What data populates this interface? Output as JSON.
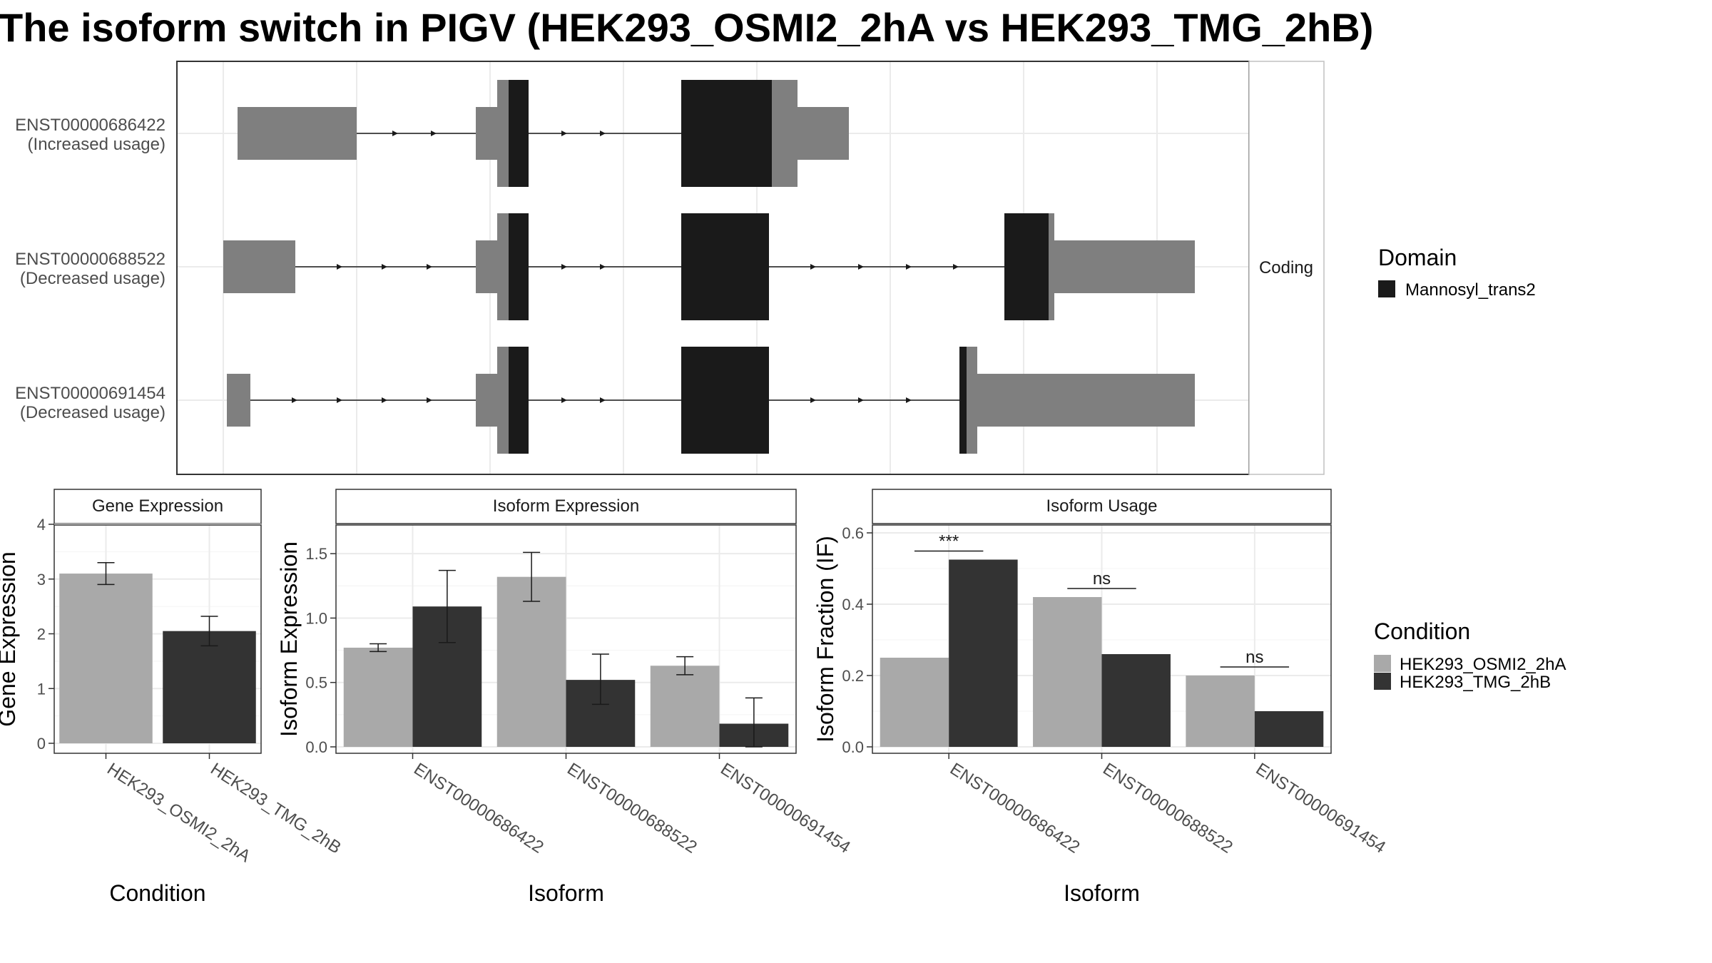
{
  "title": "The isoform switch in PIGV (HEK293_OSMI2_2hA vs HEK293_TMG_2hB)",
  "colors": {
    "domain": "#1a1a1a",
    "exon": "#7f7f7f",
    "cond_a": "#a9a9a9",
    "cond_b": "#333333",
    "grid": "#ebebeb",
    "strip_bg": "#ffffff"
  },
  "structure": {
    "facet_label": "Coding",
    "isoforms": [
      {
        "id": "ENST00000686422",
        "note": "(Increased usage)"
      },
      {
        "id": "ENST00000688522",
        "note": "(Decreased usage)"
      },
      {
        "id": "ENST00000691454",
        "note": "(Decreased usage)"
      }
    ]
  },
  "legends": {
    "domain": {
      "title": "Domain",
      "items": [
        {
          "label": "Mannosyl_trans2",
          "color": "#1a1a1a"
        }
      ]
    },
    "condition": {
      "title": "Condition",
      "items": [
        {
          "label": "HEK293_OSMI2_2hA",
          "color": "#a9a9a9"
        },
        {
          "label": "HEK293_TMG_2hB",
          "color": "#333333"
        }
      ]
    }
  },
  "chart_data": [
    {
      "type": "bar",
      "title": "Gene Expression",
      "xlabel": "Condition",
      "ylabel": "Gene Expression",
      "ylim": [
        0,
        4
      ],
      "yticks": [
        "0",
        "1",
        "2",
        "3",
        "4"
      ],
      "categories": [
        "HEK293_OSMI2_2hA",
        "HEK293_TMG_2hB"
      ],
      "values": [
        3.1,
        2.05
      ],
      "errors": [
        [
          2.9,
          3.3
        ],
        [
          1.78,
          2.32
        ]
      ]
    },
    {
      "type": "bar",
      "title": "Isoform Expression",
      "xlabel": "Isoform",
      "ylabel": "Isoform Expression",
      "ylim": [
        0,
        1.8
      ],
      "yticks": [
        "0.0",
        "0.5",
        "1.0",
        "1.5"
      ],
      "categories": [
        "ENST00000686422",
        "ENST00000688522",
        "ENST00000691454"
      ],
      "series": [
        {
          "name": "HEK293_OSMI2_2hA",
          "values": [
            0.77,
            1.32,
            0.63
          ],
          "errors": [
            [
              0.74,
              0.8
            ],
            [
              1.13,
              1.51
            ],
            [
              0.56,
              0.7
            ]
          ]
        },
        {
          "name": "HEK293_TMG_2hB",
          "values": [
            1.09,
            0.52,
            0.18
          ],
          "errors": [
            [
              0.81,
              1.37
            ],
            [
              0.33,
              0.72
            ],
            [
              0.0,
              0.38
            ]
          ]
        }
      ]
    },
    {
      "type": "bar",
      "title": "Isoform Usage",
      "xlabel": "Isoform",
      "ylabel": "Isoform Fraction (IF)",
      "ylim": [
        0,
        0.65
      ],
      "yticks": [
        "0.0",
        "0.2",
        "0.4",
        "0.6"
      ],
      "categories": [
        "ENST00000686422",
        "ENST00000688522",
        "ENST00000691454"
      ],
      "series": [
        {
          "name": "HEK293_OSMI2_2hA",
          "values": [
            0.25,
            0.42,
            0.2
          ]
        },
        {
          "name": "HEK293_TMG_2hB",
          "values": [
            0.525,
            0.26,
            0.1
          ]
        }
      ],
      "significance": [
        "***",
        "ns",
        "ns"
      ]
    }
  ]
}
